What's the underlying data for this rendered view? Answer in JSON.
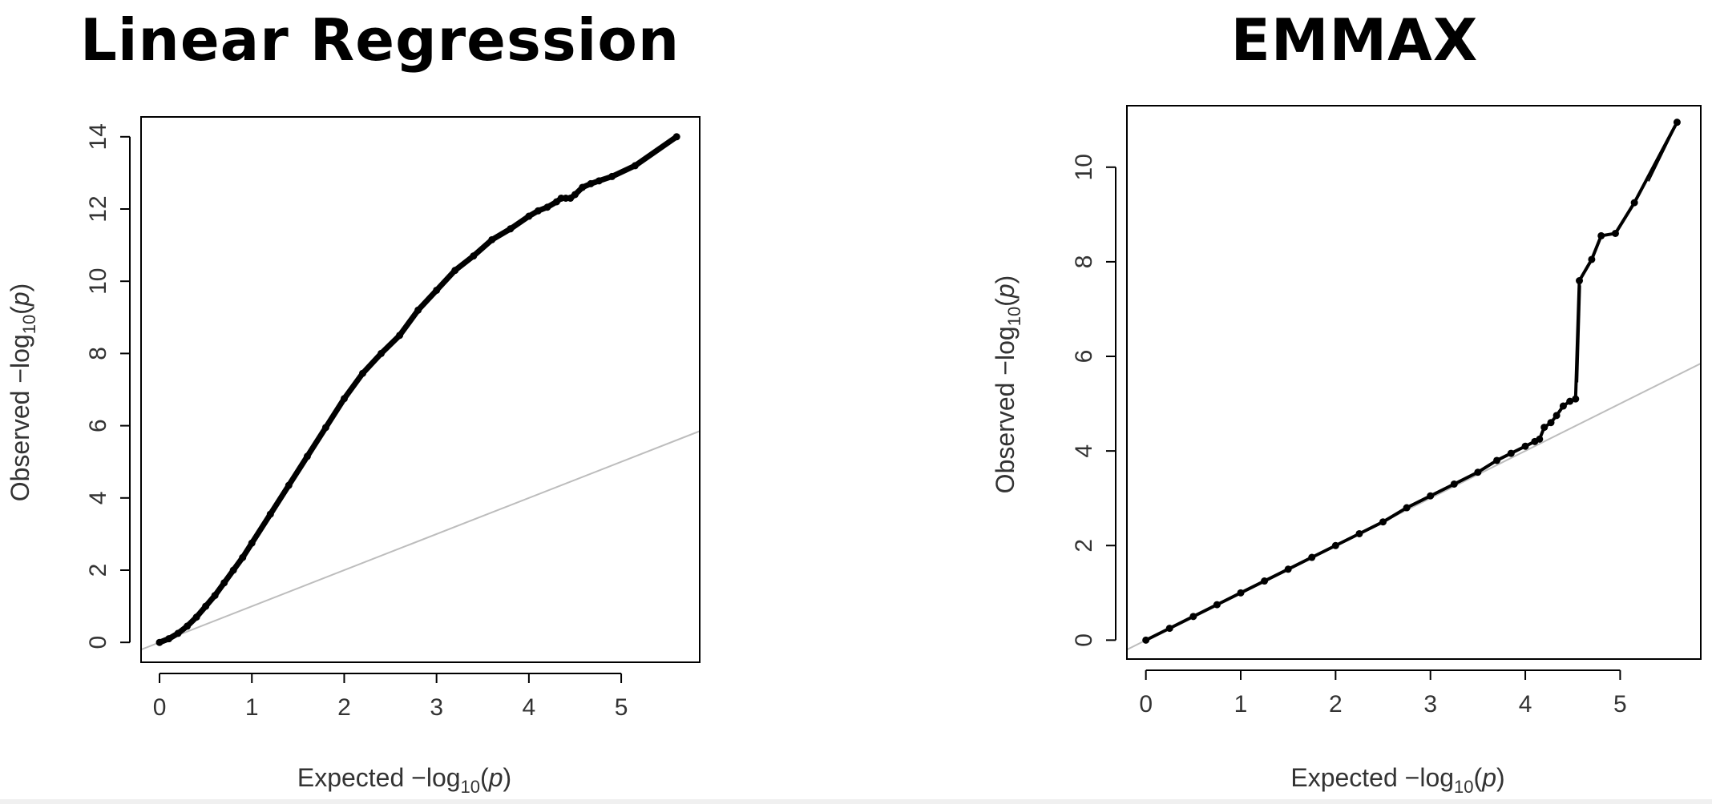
{
  "chart_data": [
    {
      "type": "scatter",
      "title": "Linear Regression",
      "xlabel": "Expected",
      "ylabel": "Observed",
      "xlim": [
        -0.2,
        5.85
      ],
      "ylim": [
        -0.55,
        14.55
      ],
      "xticks": [
        "0",
        "1",
        "2",
        "3",
        "4",
        "5"
      ],
      "yticks": [
        "0",
        "2",
        "4",
        "6",
        "8",
        "10",
        "12",
        "14"
      ],
      "reference_line": "y = x",
      "grid": false,
      "series": [
        {
          "points": [
            [
              0,
              0
            ],
            [
              0.1,
              0.1
            ],
            [
              0.2,
              0.25
            ],
            [
              0.3,
              0.45
            ],
            [
              0.4,
              0.7
            ],
            [
              0.5,
              1.0
            ],
            [
              0.6,
              1.3
            ],
            [
              0.7,
              1.65
            ],
            [
              0.8,
              2.0
            ],
            [
              0.9,
              2.35
            ],
            [
              1.0,
              2.75
            ],
            [
              1.2,
              3.55
            ],
            [
              1.4,
              4.35
            ],
            [
              1.6,
              5.15
            ],
            [
              1.8,
              5.95
            ],
            [
              2.0,
              6.75
            ],
            [
              2.2,
              7.45
            ],
            [
              2.4,
              8.0
            ],
            [
              2.6,
              8.5
            ],
            [
              2.8,
              9.2
            ],
            [
              3.0,
              9.75
            ],
            [
              3.2,
              10.3
            ],
            [
              3.4,
              10.7
            ],
            [
              3.6,
              11.15
            ],
            [
              3.8,
              11.45
            ],
            [
              4.0,
              11.8
            ],
            [
              4.1,
              11.95
            ],
            [
              4.2,
              12.05
            ],
            [
              4.3,
              12.2
            ],
            [
              4.35,
              12.3
            ],
            [
              4.4,
              12.3
            ],
            [
              4.45,
              12.3
            ],
            [
              4.5,
              12.4
            ],
            [
              4.58,
              12.6
            ],
            [
              4.67,
              12.7
            ],
            [
              4.76,
              12.78
            ],
            [
              4.9,
              12.9
            ],
            [
              5.15,
              13.2
            ],
            [
              5.6,
              14.0
            ]
          ]
        }
      ]
    },
    {
      "type": "scatter",
      "title": "EMMAX",
      "xlabel": "Expected",
      "ylabel": "Observed",
      "xlim": [
        -0.2,
        5.85
      ],
      "ylim": [
        -0.4,
        11.3
      ],
      "xticks": [
        "0",
        "1",
        "2",
        "3",
        "4",
        "5"
      ],
      "yticks": [
        "0",
        "2",
        "4",
        "6",
        "8",
        "10"
      ],
      "reference_line": "y = x",
      "grid": false,
      "series": [
        {
          "points": [
            [
              0,
              0
            ],
            [
              0.25,
              0.25
            ],
            [
              0.5,
              0.5
            ],
            [
              0.75,
              0.75
            ],
            [
              1.0,
              1.0
            ],
            [
              1.25,
              1.25
            ],
            [
              1.5,
              1.5
            ],
            [
              1.75,
              1.75
            ],
            [
              2.0,
              2.0
            ],
            [
              2.25,
              2.25
            ],
            [
              2.5,
              2.5
            ],
            [
              2.75,
              2.8
            ],
            [
              3.0,
              3.05
            ],
            [
              3.25,
              3.3
            ],
            [
              3.5,
              3.55
            ],
            [
              3.7,
              3.8
            ],
            [
              3.85,
              3.95
            ],
            [
              4.0,
              4.1
            ],
            [
              4.1,
              4.2
            ],
            [
              4.15,
              4.25
            ],
            [
              4.2,
              4.5
            ],
            [
              4.27,
              4.6
            ],
            [
              4.33,
              4.75
            ],
            [
              4.4,
              4.95
            ],
            [
              4.47,
              5.05
            ],
            [
              4.53,
              5.1
            ],
            [
              4.57,
              7.6
            ],
            [
              4.7,
              8.05
            ],
            [
              4.8,
              8.55
            ],
            [
              4.95,
              8.6
            ],
            [
              5.15,
              9.25
            ],
            [
              5.6,
              10.95
            ]
          ]
        }
      ],
      "segments": [
        [
          [
            4.55,
            5.45
          ],
          [
            4.58,
            7.5
          ]
        ],
        [
          [
            5.3,
            9.7
          ],
          [
            5.58,
            10.85
          ]
        ]
      ]
    }
  ]
}
